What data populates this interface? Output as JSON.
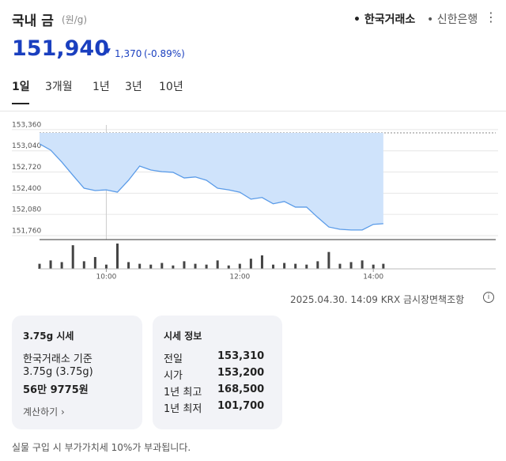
{
  "header": {
    "title": "국내 금",
    "unit": "(원/g)",
    "sources": [
      "• 한국거래소",
      "• 신한은행"
    ]
  },
  "price": {
    "current": "151,940",
    "change": "1,370",
    "change_pct": "(-0.89%)"
  },
  "tabs": [
    "1일",
    "3개월",
    "1년",
    "3년",
    "10년"
  ],
  "chart_data": {
    "type": "line",
    "x": [
      "09:00",
      "09:10",
      "09:20",
      "09:30",
      "09:40",
      "09:50",
      "10:00",
      "10:10",
      "10:20",
      "10:30",
      "10:40",
      "10:50",
      "11:00",
      "11:10",
      "11:20",
      "11:30",
      "11:40",
      "11:50",
      "12:00",
      "12:10",
      "12:20",
      "12:30",
      "12:40",
      "12:50",
      "13:00",
      "13:10",
      "13:20",
      "13:30",
      "13:40",
      "13:50",
      "14:00",
      "14:09"
    ],
    "series": [
      {
        "name": "price",
        "color": "#5a9be8",
        "values": [
          153145,
          153050,
          152870,
          152670,
          152475,
          152440,
          152450,
          152415,
          152595,
          152810,
          152750,
          152725,
          152715,
          152630,
          152645,
          152595,
          152475,
          152450,
          152415,
          152310,
          152335,
          152240,
          152275,
          152190,
          152190,
          152035,
          151890,
          151855,
          151845,
          151845,
          151930,
          151940
        ]
      },
      {
        "name": "volume",
        "color": "#444444",
        "values": [
          6,
          10,
          8,
          28,
          9,
          14,
          5,
          30,
          8,
          6,
          5,
          7,
          4,
          9,
          6,
          5,
          10,
          4,
          6,
          12,
          16,
          5,
          7,
          6,
          5,
          9,
          20,
          6,
          8,
          10,
          5,
          6
        ]
      }
    ],
    "reference_line": 153310,
    "xlim": [
      "09:00",
      "15:50"
    ],
    "xticks": [
      "10:00",
      "12:00",
      "14:00"
    ],
    "ylim": [
      151700,
      153430
    ],
    "yticks": [
      {
        "value": 151760,
        "label": "151,760"
      },
      {
        "value": 152080,
        "label": "152,080"
      },
      {
        "value": 152400,
        "label": "152,400"
      },
      {
        "value": 152720,
        "label": "152,720"
      },
      {
        "value": 153040,
        "label": "153,040"
      },
      {
        "value": 153360,
        "label": "153,360"
      }
    ],
    "grid": true,
    "fill_color": "#cfe3fb"
  },
  "footer": {
    "timestamp": "2025.04.30. 14:09 KRX 금시장",
    "disclaimer": "면책조항"
  },
  "card1": {
    "title": "3.75g 시세",
    "basis": "한국거래소 기준",
    "weight": "3.75g (3.75g)",
    "amount": "56만 9775원",
    "link": "계산하기"
  },
  "card2": {
    "title": "시세 정보",
    "rows": [
      [
        "전일",
        "153,310"
      ],
      [
        "시가",
        "153,200"
      ],
      [
        "1년 최고",
        "168,500"
      ],
      [
        "1년 최저",
        "101,700"
      ]
    ]
  },
  "note": "실물 구입 시 부가가치세 10%가 부과됩니다."
}
